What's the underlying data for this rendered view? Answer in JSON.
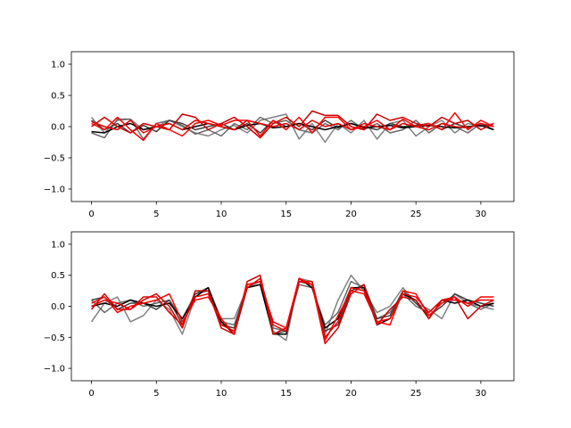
{
  "chart_data": [
    {
      "type": "line",
      "xlim": [
        -1.55,
        32.55
      ],
      "ylim": [
        -1.2,
        1.2
      ],
      "xticks": [
        0,
        5,
        10,
        15,
        20,
        25,
        30
      ],
      "yticks": [
        -1.0,
        -0.5,
        0.0,
        0.5,
        1.0
      ],
      "xtick_labels": [
        "0",
        "5",
        "10",
        "15",
        "20",
        "25",
        "30"
      ],
      "ytick_labels": [
        "−1.0",
        "−0.5",
        "0.0",
        "0.5",
        "1.0"
      ],
      "x": [
        0,
        1,
        2,
        3,
        4,
        5,
        6,
        7,
        8,
        9,
        10,
        11,
        12,
        13,
        14,
        15,
        16,
        17,
        18,
        19,
        20,
        21,
        22,
        23,
        24,
        25,
        26,
        27,
        28,
        29,
        30,
        31
      ],
      "grid": false,
      "series": [
        {
          "color": "#808080",
          "values": [
            0.15,
            -0.1,
            0.1,
            0.12,
            -0.05,
            0.0,
            0.1,
            0.0,
            -0.1,
            -0.15,
            -0.05,
            0.02,
            -0.1,
            0.1,
            0.15,
            0.2,
            -0.2,
            0.05,
            -0.25,
            0.05,
            -0.1,
            0.1,
            -0.2,
            0.05,
            0.1,
            -0.15,
            0.0,
            0.1,
            -0.1,
            0.05,
            0.0,
            0.05
          ]
        },
        {
          "color": "#696969",
          "values": [
            -0.1,
            -0.18,
            0.12,
            0.12,
            -0.2,
            0.05,
            0.1,
            0.02,
            -0.12,
            -0.05,
            -0.15,
            0.05,
            -0.05,
            0.15,
            0.05,
            0.1,
            -0.05,
            -0.1,
            0.05,
            -0.05,
            0.1,
            -0.05,
            0.05,
            -0.1,
            -0.05,
            0.1,
            -0.1,
            0.05,
            0.0,
            -0.1,
            0.05,
            0.0
          ]
        },
        {
          "color": "#404040",
          "values": [
            0.1,
            -0.05,
            0.05,
            -0.1,
            0.02,
            -0.08,
            0.1,
            0.05,
            -0.05,
            0.0,
            0.05,
            -0.05,
            0.05,
            -0.1,
            0.1,
            0.0,
            0.05,
            -0.05,
            0.1,
            -0.02,
            0.05,
            0.0,
            -0.05,
            0.05,
            0.0,
            0.02,
            0.05,
            -0.05,
            0.05,
            -0.02,
            0.05,
            -0.05
          ]
        },
        {
          "color": "#000000",
          "values": [
            -0.08,
            -0.1,
            0.0,
            0.05,
            -0.05,
            0.0,
            0.05,
            -0.05,
            0.0,
            0.05,
            0.0,
            -0.05,
            0.02,
            0.05,
            -0.02,
            0.0,
            0.05,
            0.0,
            -0.05,
            0.0,
            0.05,
            -0.02,
            0.0,
            0.02,
            -0.02,
            0.0,
            0.02,
            0.0,
            -0.02,
            0.0,
            0.02,
            -0.05
          ]
        },
        {
          "color": "#cc0000",
          "values": [
            0.0,
            0.15,
            0.0,
            -0.1,
            0.05,
            0.0,
            -0.05,
            0.2,
            0.15,
            -0.05,
            0.05,
            0.15,
            0.0,
            -0.18,
            0.05,
            0.15,
            0.0,
            0.25,
            0.18,
            0.18,
            0.0,
            -0.05,
            0.2,
            0.1,
            0.15,
            0.05,
            0.0,
            0.15,
            0.05,
            0.1,
            -0.05,
            0.05
          ]
        },
        {
          "color": "#ff0000",
          "values": [
            0.05,
            -0.05,
            0.15,
            -0.05,
            -0.22,
            0.05,
            -0.05,
            -0.15,
            0.05,
            0.1,
            0.02,
            0.1,
            0.1,
            -0.15,
            0.1,
            -0.05,
            0.15,
            -0.1,
            0.15,
            0.15,
            -0.05,
            0.0,
            0.1,
            -0.05,
            0.12,
            0.0,
            0.05,
            -0.05,
            0.22,
            -0.05,
            0.1,
            0.0
          ]
        },
        {
          "color": "#e60000",
          "values": [
            0.08,
            0.0,
            -0.05,
            0.1,
            -0.1,
            0.0,
            0.05,
            -0.05,
            0.1,
            0.05,
            0.0,
            -0.05,
            0.1,
            0.05,
            0.0,
            0.05,
            -0.05,
            0.1,
            0.0,
            0.05,
            -0.05,
            0.05,
            0.0,
            -0.05,
            0.05,
            0.0,
            -0.05,
            0.05,
            0.0,
            -0.02,
            0.05,
            0.0
          ]
        }
      ]
    },
    {
      "type": "line",
      "xlim": [
        -1.55,
        32.55
      ],
      "ylim": [
        -1.2,
        1.2
      ],
      "xticks": [
        0,
        5,
        10,
        15,
        20,
        25,
        30
      ],
      "yticks": [
        -1.0,
        -0.5,
        0.0,
        0.5,
        1.0
      ],
      "xtick_labels": [
        "0",
        "5",
        "10",
        "15",
        "20",
        "25",
        "30"
      ],
      "ytick_labels": [
        "−1.0",
        "−0.5",
        "0.0",
        "0.5",
        "1.0"
      ],
      "x": [
        0,
        1,
        2,
        3,
        4,
        5,
        6,
        7,
        8,
        9,
        10,
        11,
        12,
        13,
        14,
        15,
        16,
        17,
        18,
        19,
        20,
        21,
        22,
        23,
        24,
        25,
        26,
        27,
        28,
        29,
        30,
        31
      ],
      "grid": false,
      "series": [
        {
          "color": "#808080",
          "values": [
            -0.25,
            0.05,
            0.15,
            -0.25,
            -0.15,
            0.1,
            -0.05,
            -0.45,
            0.15,
            0.3,
            -0.2,
            -0.2,
            0.3,
            0.4,
            -0.4,
            -0.55,
            0.45,
            0.4,
            -0.45,
            0.1,
            0.5,
            0.25,
            -0.1,
            0.0,
            0.3,
            0.05,
            -0.05,
            -0.2,
            0.2,
            0.05,
            0.0,
            -0.05
          ]
        },
        {
          "color": "#696969",
          "values": [
            0.1,
            -0.1,
            0.05,
            0.1,
            0.0,
            0.05,
            0.1,
            -0.2,
            0.2,
            0.25,
            -0.25,
            -0.3,
            0.3,
            0.35,
            -0.35,
            -0.4,
            0.35,
            0.3,
            -0.3,
            -0.1,
            0.4,
            0.3,
            -0.2,
            -0.1,
            0.2,
            0.0,
            -0.1,
            0.1,
            0.1,
            0.05,
            -0.05,
            0.05
          ]
        },
        {
          "color": "#404040",
          "values": [
            0.1,
            0.15,
            -0.05,
            0.05,
            0.05,
            -0.05,
            0.1,
            -0.3,
            0.2,
            0.3,
            -0.3,
            -0.35,
            0.35,
            0.4,
            -0.45,
            -0.4,
            0.4,
            0.35,
            -0.4,
            -0.3,
            0.25,
            0.35,
            -0.2,
            -0.15,
            0.25,
            0.05,
            -0.15,
            0.0,
            0.2,
            0.1,
            0.05,
            0.0
          ]
        },
        {
          "color": "#000000",
          "values": [
            0.0,
            0.05,
            0.0,
            0.1,
            0.05,
            0.0,
            0.05,
            -0.2,
            0.15,
            0.3,
            -0.25,
            -0.45,
            0.3,
            0.35,
            -0.45,
            -0.45,
            0.45,
            0.3,
            -0.35,
            -0.2,
            0.3,
            0.3,
            -0.3,
            -0.2,
            0.2,
            0.1,
            -0.2,
            0.1,
            0.05,
            0.1,
            0.0,
            0.05
          ]
        },
        {
          "color": "#cc0000",
          "values": [
            -0.05,
            0.2,
            -0.05,
            -0.05,
            0.1,
            0.2,
            0.0,
            -0.35,
            0.25,
            0.25,
            -0.35,
            -0.45,
            0.4,
            0.5,
            -0.45,
            -0.35,
            0.4,
            0.35,
            -0.6,
            -0.35,
            0.2,
            0.35,
            -0.3,
            -0.05,
            0.15,
            0.1,
            -0.2,
            0.1,
            0.15,
            -0.2,
            0.0,
            0.1
          ]
        },
        {
          "color": "#ff0000",
          "values": [
            0.05,
            0.15,
            -0.1,
            0.0,
            0.05,
            0.1,
            0.2,
            -0.25,
            0.1,
            0.15,
            -0.2,
            -0.45,
            0.35,
            0.4,
            -0.25,
            -0.35,
            0.45,
            0.35,
            -0.55,
            -0.15,
            0.25,
            0.2,
            -0.25,
            -0.3,
            0.25,
            0.2,
            -0.15,
            0.05,
            0.15,
            0.0,
            0.15,
            0.15
          ]
        },
        {
          "color": "#e60000",
          "values": [
            0.0,
            0.1,
            0.05,
            -0.05,
            0.15,
            0.15,
            -0.1,
            -0.3,
            0.15,
            0.2,
            -0.3,
            -0.4,
            0.3,
            0.45,
            -0.3,
            -0.4,
            0.4,
            0.4,
            -0.5,
            -0.25,
            0.3,
            0.25,
            -0.25,
            -0.2,
            0.2,
            0.15,
            -0.1,
            0.1,
            0.1,
            0.05,
            0.1,
            0.1
          ]
        }
      ]
    }
  ]
}
